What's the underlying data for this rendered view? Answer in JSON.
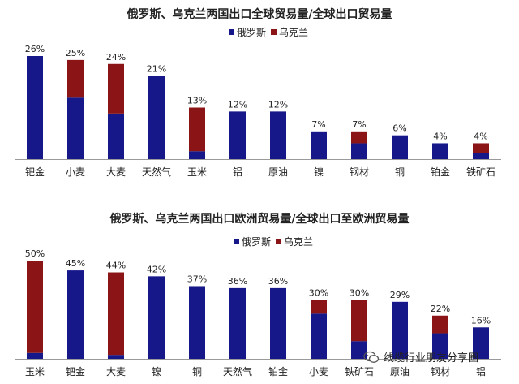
{
  "colors": {
    "russia": "#16188a",
    "ukraine": "#8b1416",
    "axis": "#9a9a9a",
    "text": "#222222"
  },
  "watermark": "线缆行业朋友分享圈",
  "chart_data": [
    {
      "type": "bar",
      "stacked": true,
      "title": "俄罗斯、乌克兰两国出口全球贸易量/全球出口贸易量",
      "legend": [
        "俄罗斯",
        "乌克兰"
      ],
      "legend_position": "top-center",
      "categories": [
        "钯金",
        "小麦",
        "大麦",
        "天然气",
        "玉米",
        "铝",
        "原油",
        "镍",
        "钢材",
        "铜",
        "铂金",
        "铁矿石"
      ],
      "totals": [
        26,
        25,
        24,
        21,
        13,
        12,
        12,
        7,
        7,
        6,
        4,
        4
      ],
      "total_labels": [
        "26%",
        "25%",
        "24%",
        "21%",
        "13%",
        "12%",
        "12%",
        "7%",
        "7%",
        "6%",
        "4%",
        "4%"
      ],
      "series": [
        {
          "name": "俄罗斯",
          "values": [
            26,
            15.5,
            11.5,
            21,
            2,
            12,
            12,
            7,
            4,
            6,
            4,
            1.5
          ]
        },
        {
          "name": "乌克兰",
          "values": [
            0,
            9.5,
            12.5,
            0,
            11,
            0,
            0,
            0,
            3,
            0,
            0,
            2.5
          ]
        }
      ],
      "ylim": [
        0,
        26
      ],
      "grid": false
    },
    {
      "type": "bar",
      "stacked": true,
      "title": "俄罗斯、乌克兰两国出口欧洲贸易量/全球出口至欧洲贸易量",
      "legend": [
        "俄罗斯",
        "乌克兰"
      ],
      "legend_position": "top-center",
      "categories": [
        "玉米",
        "钯金",
        "大麦",
        "镍",
        "铜",
        "天然气",
        "铂金",
        "小麦",
        "铁矿石",
        "原油",
        "钢材",
        "铝"
      ],
      "totals": [
        50,
        45,
        44,
        42,
        37,
        36,
        36,
        30,
        30,
        29,
        22,
        16
      ],
      "total_labels": [
        "50%",
        "45%",
        "44%",
        "42%",
        "37%",
        "36%",
        "36%",
        "30%",
        "30%",
        "29%",
        "22%",
        "16%"
      ],
      "series": [
        {
          "name": "俄罗斯",
          "values": [
            3,
            45,
            2,
            42,
            37,
            36,
            36,
            23,
            9,
            29,
            13,
            16
          ]
        },
        {
          "name": "乌克兰",
          "values": [
            47,
            0,
            42,
            0,
            0,
            0,
            0,
            7,
            21,
            0,
            9,
            0
          ]
        }
      ],
      "ylim": [
        0,
        50
      ],
      "grid": false
    }
  ]
}
